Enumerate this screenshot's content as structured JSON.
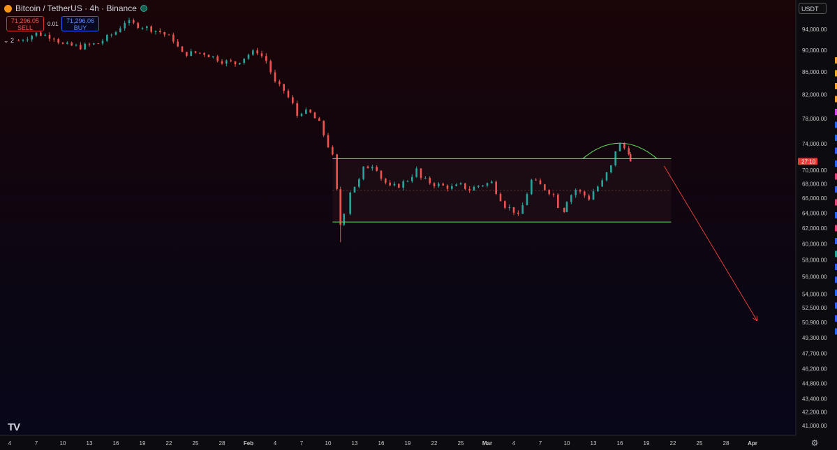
{
  "header": {
    "symbol": "Bitcoin / TetherUS · 4h · Binance",
    "sell_price": "71,296.05",
    "sell_label": "SELL",
    "spread": "0.01",
    "buy_price": "71,296.06",
    "buy_label": "BUY",
    "indicator_count": "2"
  },
  "currency_selector": "USDT",
  "countdown": "27:10",
  "colors": {
    "up": "#26a69a",
    "down": "#ef5350",
    "pattern": "#5fcf50",
    "arrow": "#e0413a",
    "countdown_bg": "#e53935"
  },
  "icons": [
    "bitcoin-icon",
    "live-status-icon",
    "tradingview-logo-icon",
    "settings-gear-icon"
  ],
  "chart_data": {
    "type": "candlestick",
    "symbol": "BTCUSDT",
    "timeframe": "4h",
    "y_axis": {
      "ticks": [
        "94,000.00",
        "90,000.00",
        "86,000.00",
        "82,000.00",
        "78,000.00",
        "74,000.00",
        "70,000.00",
        "68,000.00",
        "66,000.00",
        "64,000.00",
        "62,000.00",
        "60,000.00",
        "58,000.00",
        "56,000.00",
        "54,000.00",
        "52,500.00",
        "50,900.00",
        "49,300.00",
        "47,700.00",
        "46,200.00",
        "44,800.00",
        "43,400.00",
        "42,200.00",
        "41,000.00"
      ],
      "scale": "log"
    },
    "x_axis": {
      "ticks": [
        "4",
        "7",
        "10",
        "13",
        "16",
        "19",
        "22",
        "25",
        "28",
        "Feb",
        "4",
        "7",
        "10",
        "13",
        "16",
        "19",
        "22",
        "25",
        "Mar",
        "4",
        "7",
        "10",
        "13",
        "16",
        "19",
        "22",
        "25",
        "28",
        "Apr"
      ],
      "bold": [
        "Feb",
        "Mar",
        "Apr"
      ]
    },
    "last_price": "71,296.05",
    "price_path": [
      [
        1,
        91800
      ],
      [
        3,
        93200
      ],
      [
        5,
        92500
      ],
      [
        6,
        91000
      ],
      [
        8,
        90600
      ],
      [
        10,
        91300
      ],
      [
        12,
        93500
      ],
      [
        13,
        95500
      ],
      [
        14,
        95000
      ],
      [
        15,
        94600
      ],
      [
        17,
        93500
      ],
      [
        18,
        92500
      ],
      [
        18.5,
        92000
      ],
      [
        19,
        90500
      ],
      [
        19.5,
        89300
      ],
      [
        21,
        89500
      ],
      [
        22,
        89400
      ],
      [
        24,
        88000
      ],
      [
        25.5,
        87500
      ],
      [
        27,
        89200
      ],
      [
        28,
        89800
      ],
      [
        29,
        88000
      ],
      [
        29.5,
        86000
      ],
      [
        30,
        84000
      ],
      [
        31,
        82700
      ],
      [
        32,
        80300
      ],
      [
        32.5,
        78500
      ],
      [
        33,
        79200
      ],
      [
        34,
        78800
      ],
      [
        35,
        77200
      ],
      [
        36.5,
        72000
      ],
      [
        37,
        67000
      ],
      [
        37.4,
        62500
      ],
      [
        37.8,
        64200
      ],
      [
        38.5,
        67000
      ],
      [
        39.5,
        68500
      ],
      [
        40,
        70200
      ],
      [
        41,
        70800
      ],
      [
        41.5,
        70300
      ],
      [
        42,
        68900
      ],
      [
        43,
        67500
      ],
      [
        44,
        67800
      ],
      [
        45,
        68600
      ],
      [
        46,
        70000
      ],
      [
        46.5,
        68800
      ],
      [
        47,
        68500
      ],
      [
        48,
        68000
      ],
      [
        49,
        67700
      ],
      [
        50,
        67500
      ],
      [
        51,
        67800
      ],
      [
        52,
        67200
      ],
      [
        53,
        67800
      ],
      [
        54.5,
        68200
      ],
      [
        55,
        67000
      ],
      [
        56,
        65000
      ],
      [
        57,
        64300
      ],
      [
        57.5,
        63500
      ],
      [
        58,
        65000
      ],
      [
        59,
        68500
      ],
      [
        60,
        67800
      ],
      [
        61.5,
        66500
      ],
      [
        62,
        65000
      ],
      [
        62.7,
        64400
      ],
      [
        63,
        65800
      ],
      [
        64,
        67200
      ],
      [
        65.5,
        66000
      ],
      [
        66,
        67000
      ],
      [
        67,
        68300
      ],
      [
        67.5,
        69500
      ],
      [
        68,
        70500
      ],
      [
        68.5,
        73000
      ],
      [
        69,
        73800
      ],
      [
        70,
        72800
      ],
      [
        70.2,
        71296
      ]
    ],
    "annotations": [
      {
        "type": "range_rectangle",
        "x_from": 36.5,
        "x_to": 74.8,
        "y_from": 62800,
        "y_to": 71700
      },
      {
        "type": "arc_top",
        "x_from": 64.8,
        "x_to": 73.2,
        "y_base": 71700,
        "y_peak": 74200
      },
      {
        "type": "projection_arrow",
        "x_from": 74,
        "y_from": 70600,
        "x_to": 84.5,
        "y_to": 51100
      }
    ]
  },
  "right_toolbar_colors": [
    "#f5a623",
    "#f5a623",
    "#f5a623",
    "#f5a623",
    "#e040fb",
    "#2962ff",
    "#2962ff",
    "#2962ff",
    "#2962ff",
    "#ec407a",
    "#2962ff",
    "#ec407a",
    "#2962ff",
    "#ec407a",
    "#2962ff",
    "#26a69a",
    "#2962ff",
    "#2962ff",
    "#2962ff",
    "#2962ff",
    "#2962ff",
    "#2962ff"
  ]
}
